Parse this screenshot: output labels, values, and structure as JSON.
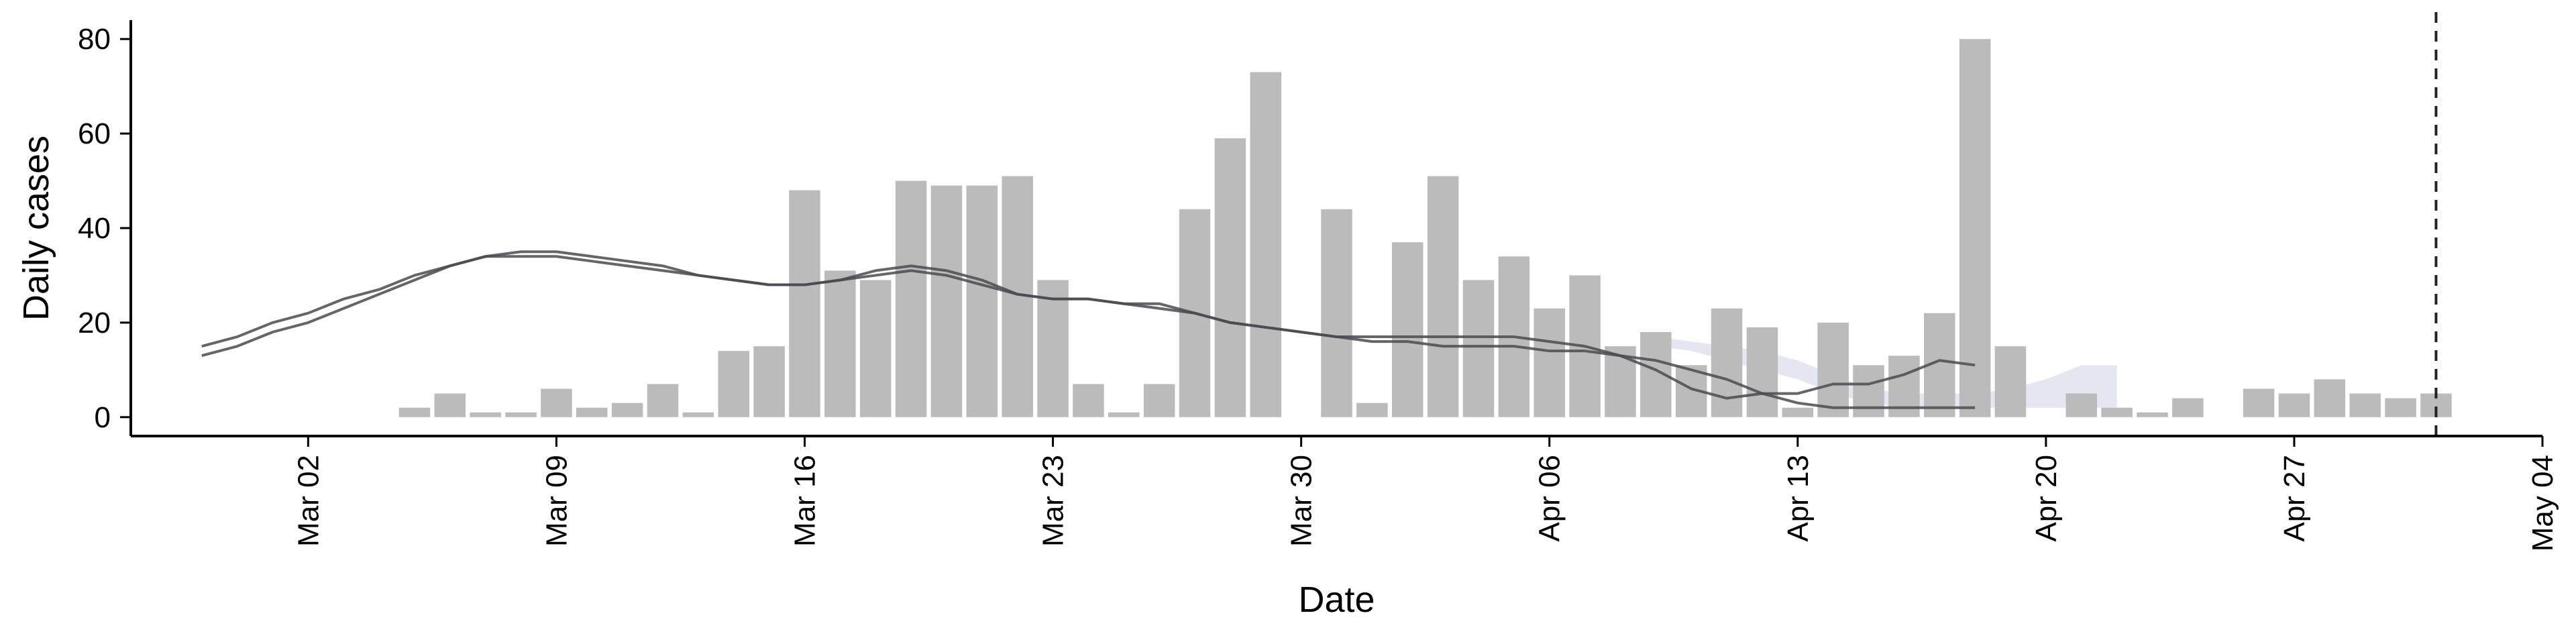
{
  "chart_data": {
    "type": "bar",
    "xlabel": "Date",
    "ylabel": "Daily cases",
    "ylim": [
      -4,
      84
    ],
    "yticks": [
      0,
      20,
      40,
      60,
      80
    ],
    "xticks": [
      {
        "label": "Mar 02",
        "date": "2020-03-02"
      },
      {
        "label": "Mar 09",
        "date": "2020-03-09"
      },
      {
        "label": "Mar 16",
        "date": "2020-03-16"
      },
      {
        "label": "Mar 23",
        "date": "2020-03-23"
      },
      {
        "label": "Mar 30",
        "date": "2020-03-30"
      },
      {
        "label": "Apr 06",
        "date": "2020-04-06"
      },
      {
        "label": "Apr 13",
        "date": "2020-04-13"
      },
      {
        "label": "Apr 20",
        "date": "2020-04-20"
      },
      {
        "label": "Apr 27",
        "date": "2020-04-27"
      },
      {
        "label": "May 04",
        "date": "2020-05-04"
      }
    ],
    "xlim": [
      "2020-02-26",
      "2020-05-04"
    ],
    "grid": false,
    "vline_date": "2020-05-01",
    "bars": {
      "color": "#bbbbbb",
      "dates": [
        "2020-03-05",
        "2020-03-06",
        "2020-03-07",
        "2020-03-08",
        "2020-03-09",
        "2020-03-10",
        "2020-03-11",
        "2020-03-12",
        "2020-03-13",
        "2020-03-14",
        "2020-03-15",
        "2020-03-16",
        "2020-03-17",
        "2020-03-18",
        "2020-03-19",
        "2020-03-20",
        "2020-03-21",
        "2020-03-22",
        "2020-03-23",
        "2020-03-24",
        "2020-03-25",
        "2020-03-26",
        "2020-03-27",
        "2020-03-28",
        "2020-03-29",
        "2020-03-30",
        "2020-03-31",
        "2020-04-01",
        "2020-04-02",
        "2020-04-03",
        "2020-04-04",
        "2020-04-05",
        "2020-04-06",
        "2020-04-07",
        "2020-04-08",
        "2020-04-09",
        "2020-04-10",
        "2020-04-11",
        "2020-04-12",
        "2020-04-13",
        "2020-04-14",
        "2020-04-15",
        "2020-04-16",
        "2020-04-17",
        "2020-04-18",
        "2020-04-19",
        "2020-04-20",
        "2020-04-21",
        "2020-04-22",
        "2020-04-23",
        "2020-04-24",
        "2020-04-25",
        "2020-04-26",
        "2020-04-27",
        "2020-04-28",
        "2020-04-29",
        "2020-04-30",
        "2020-05-01"
      ],
      "values": [
        2,
        5,
        1,
        1,
        6,
        2,
        3,
        7,
        1,
        14,
        15,
        48,
        31,
        29,
        50,
        49,
        49,
        51,
        29,
        7,
        1,
        7,
        44,
        59,
        73,
        0,
        44,
        3,
        37,
        51,
        29,
        34,
        23,
        30,
        15,
        18,
        11,
        23,
        19,
        2,
        20,
        11,
        13,
        22,
        80,
        15,
        0,
        5,
        2,
        1,
        4,
        0,
        6,
        5,
        8,
        5,
        4,
        5
      ]
    },
    "series": [
      {
        "color": "#4a4a50",
        "start": "2020-02-28",
        "values": [
          15,
          17,
          20,
          22,
          25,
          27,
          30,
          32,
          34,
          35,
          35,
          34,
          33,
          32,
          30,
          29,
          28,
          28,
          29,
          31,
          32,
          31,
          29,
          26,
          25,
          25,
          24,
          24,
          22,
          20,
          19,
          18,
          17,
          17,
          17,
          17,
          17,
          17,
          16,
          15,
          13,
          10,
          6,
          4,
          5,
          5,
          7,
          7,
          9,
          12,
          11
        ]
      },
      {
        "color": "#4a4a50",
        "start": "2020-02-28",
        "values": [
          13,
          15,
          18,
          20,
          23,
          26,
          29,
          32,
          34,
          34,
          34,
          33,
          32,
          31,
          30,
          29,
          28,
          28,
          29,
          30,
          31,
          30,
          28,
          26,
          25,
          25,
          24,
          23,
          22,
          20,
          19,
          18,
          17,
          16,
          16,
          15,
          15,
          15,
          14,
          14,
          13,
          12,
          10,
          8,
          5,
          3,
          2,
          2,
          2,
          2,
          2
        ]
      }
    ],
    "band": {
      "color": "#c4c9dc",
      "start": "2020-04-09",
      "lower": [
        15,
        14,
        12,
        10,
        8,
        5,
        3,
        2,
        2,
        2,
        2,
        2,
        2,
        2
      ],
      "upper": [
        17,
        16,
        15,
        14,
        12,
        9,
        6,
        5,
        5,
        5,
        6,
        8,
        11,
        11
      ]
    }
  }
}
